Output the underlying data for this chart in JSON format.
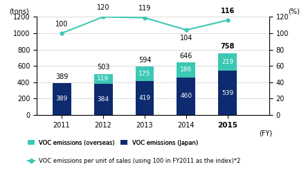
{
  "years": [
    2011,
    2012,
    2013,
    2014,
    2015
  ],
  "japan": [
    389,
    384,
    419,
    460,
    539
  ],
  "overseas": [
    0,
    119,
    175,
    186,
    219
  ],
  "totals": [
    389,
    503,
    594,
    646,
    758
  ],
  "line_values": [
    100,
    120,
    119,
    104,
    116
  ],
  "bar_color_japan": "#0d2b6e",
  "bar_color_overseas": "#3cc8b4",
  "line_color": "#3cc8b4",
  "ylim_left": [
    0,
    1200
  ],
  "ylim_right": [
    0,
    120
  ],
  "yticks_left": [
    0,
    200,
    400,
    600,
    800,
    1000,
    1200
  ],
  "yticks_right": [
    0,
    20,
    40,
    60,
    80,
    100,
    120
  ],
  "ylabel_left": "(tons)",
  "ylabel_right": "(%)",
  "xlabel": "(FY)",
  "legend_overseas": "VOC emissions (overseas)",
  "legend_japan": "VOC emissions (Japan)",
  "legend_line": "VOC emissions per unit of sales (using 100 in FY2011 as the index)*2",
  "bar_width": 0.45,
  "line_label_offsets": {
    "2011": [
      0,
      6
    ],
    "2012": [
      0,
      6
    ],
    "2013": [
      0,
      6
    ],
    "2014": [
      0,
      -12
    ],
    "2015": [
      0,
      6
    ]
  },
  "xlim": [
    2010.4,
    2016.0
  ]
}
